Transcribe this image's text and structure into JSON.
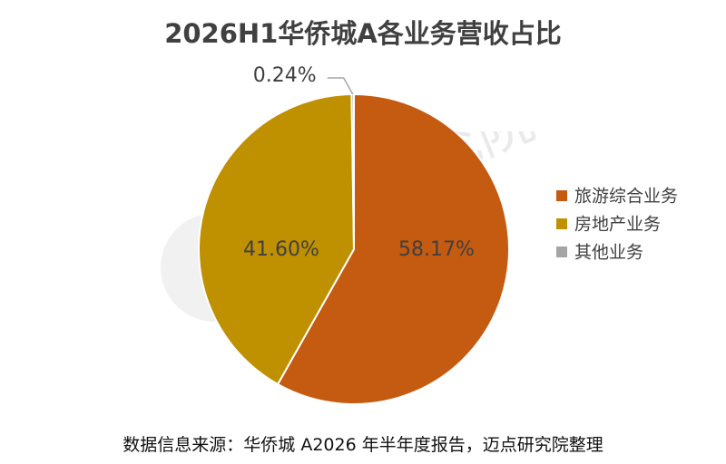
{
  "chart_data": {
    "type": "pie",
    "title": "2026H1华侨城A各业务营收占比",
    "categories": [
      "旅游综合业务",
      "房地产业务",
      "其他业务"
    ],
    "values": [
      58.17,
      41.6,
      0.24
    ],
    "data_labels": [
      "58.17%",
      "41.60%",
      "0.24%"
    ],
    "colors": [
      "#C55A11",
      "#BF9000",
      "#A5A5A5"
    ],
    "legend_position": "right"
  },
  "watermark": {
    "text": "迈点研究院",
    "subtext": "MEADIN ACADEMY"
  },
  "footer": {
    "source": "数据信息来源：华侨城 A2026 年半年度报告，迈点研究院整理"
  }
}
